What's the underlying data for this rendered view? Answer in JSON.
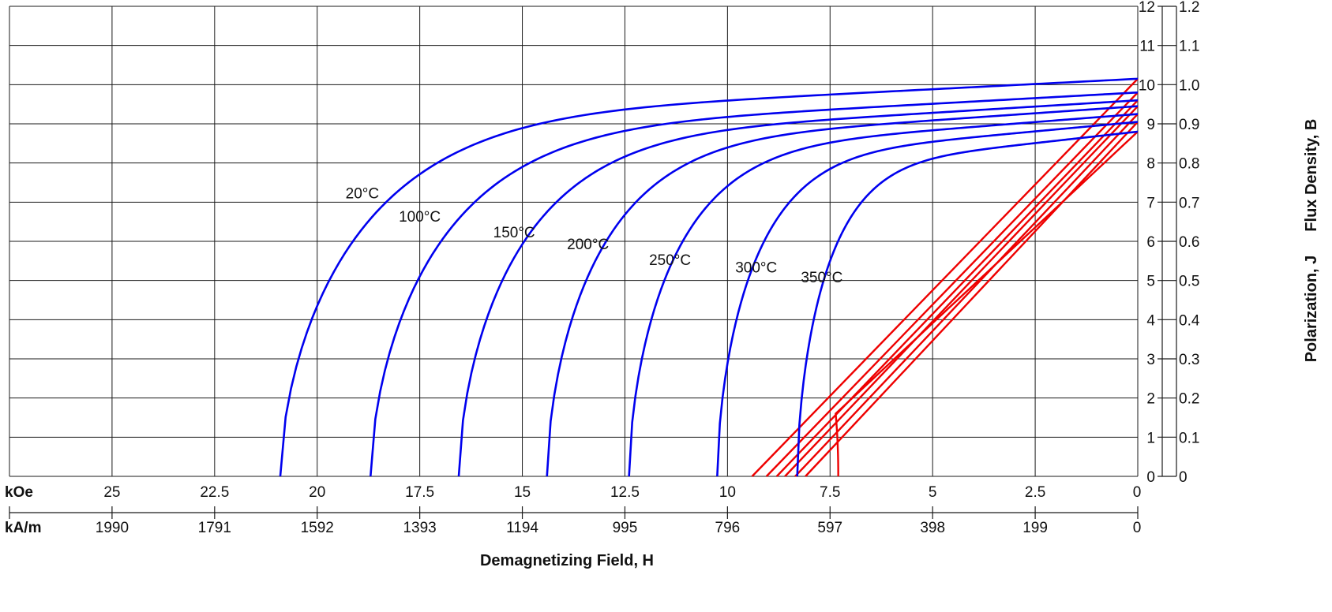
{
  "chart_data": {
    "type": "line",
    "xlabel": "Demagnetizing Field, H",
    "ylabel_left_part": "Polarization,  J",
    "ylabel_right_part": "Flux Density,  B",
    "x_unit_koe": "kOe",
    "x_unit_kam": "kA/m",
    "x_axis": "reversed",
    "xlim_koe": [
      27.5,
      0
    ],
    "ylim_kg": [
      0,
      12
    ],
    "ylim_t": [
      0,
      1.2
    ],
    "grid": true,
    "x_ticks_koe": [
      "25",
      "22.5",
      "20",
      "17.5",
      "15",
      "12.5",
      "10",
      "7.5",
      "5",
      "2.5",
      "0"
    ],
    "x_ticks_kam": [
      "1990",
      "1791",
      "1592",
      "1393",
      "1194",
      "995",
      "796",
      "597",
      "398",
      "199",
      "0"
    ],
    "y_ticks_kg": [
      "0",
      "1",
      "2",
      "3",
      "4",
      "5",
      "6",
      "7",
      "8",
      "9",
      "10",
      "11",
      "12"
    ],
    "y_ticks_t": [
      "0",
      "0.1",
      "0.2",
      "0.3",
      "0.4",
      "0.5",
      "0.6",
      "0.7",
      "0.8",
      "0.9",
      "1.0",
      "1.1",
      "1.2"
    ],
    "colors": {
      "polarization": "#0000ee",
      "flux_density": "#ee0000"
    },
    "series": [
      {
        "name": "20°C",
        "kind": "polarization",
        "Hcj_koe": 20.9,
        "Br_kg": 10.15,
        "label_at_koe": 18.9,
        "label_at_kg": 7.1
      },
      {
        "name": "100°C",
        "kind": "polarization",
        "Hcj_koe": 18.7,
        "Br_kg": 9.8,
        "label_at_koe": 17.5,
        "label_at_kg": 6.5
      },
      {
        "name": "150°C",
        "kind": "polarization",
        "Hcj_koe": 16.55,
        "Br_kg": 9.6,
        "label_at_koe": 15.2,
        "label_at_kg": 6.1
      },
      {
        "name": "200°C",
        "kind": "polarization",
        "Hcj_koe": 14.4,
        "Br_kg": 9.45,
        "label_at_koe": 13.4,
        "label_at_kg": 5.8
      },
      {
        "name": "250°C",
        "kind": "polarization",
        "Hcj_koe": 12.4,
        "Br_kg": 9.25,
        "label_at_koe": 11.4,
        "label_at_kg": 5.4
      },
      {
        "name": "300°C",
        "kind": "polarization",
        "Hcj_koe": 10.25,
        "Br_kg": 9.05,
        "label_at_koe": 9.3,
        "label_at_kg": 5.2
      },
      {
        "name": "350°C",
        "kind": "polarization",
        "Hcj_koe": 8.3,
        "Br_kg": 8.8,
        "label_at_koe": 7.7,
        "label_at_kg": 4.95
      },
      {
        "kind": "flux_density",
        "Br_kg": 10.15,
        "Hc_koe": 9.4
      },
      {
        "kind": "flux_density",
        "Br_kg": 9.8,
        "Hc_koe": 9.05
      },
      {
        "kind": "flux_density",
        "Br_kg": 9.6,
        "Hc_koe": 8.8
      },
      {
        "kind": "flux_density",
        "Br_kg": 9.45,
        "Hc_koe": 8.6
      },
      {
        "kind": "flux_density",
        "Br_kg": 9.25,
        "Hc_koe": 8.35
      },
      {
        "kind": "flux_density",
        "Br_kg": 9.05,
        "Hc_koe": 8.1
      },
      {
        "kind": "flux_density",
        "Br_kg": 8.8,
        "Hc_koe": 7.3,
        "bend_below_kg": 1.6
      }
    ]
  }
}
